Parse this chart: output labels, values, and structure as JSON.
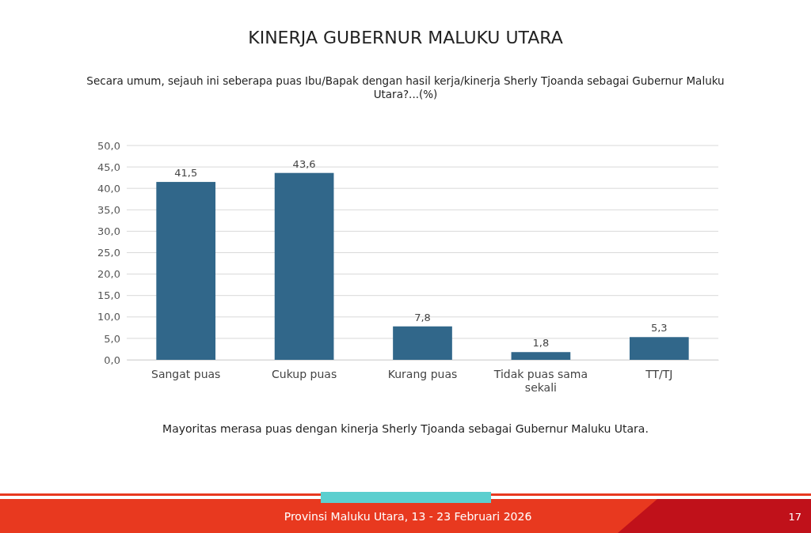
{
  "chart_data": {
    "type": "bar",
    "title": "KINERJA GUBERNUR MALUKU UTARA",
    "subtitle": "Secara umum, sejauh ini seberapa puas Ibu/Bapak dengan hasil kerja/kinerja Sherly Tjoanda sebagai Gubernur Maluku Utara?...(%)",
    "categories": [
      "Sangat puas",
      "Cukup puas",
      "Kurang puas",
      "Tidak puas sama sekali",
      "TT/TJ"
    ],
    "values": [
      41.5,
      43.6,
      7.8,
      1.8,
      5.3
    ],
    "color": "#31678a",
    "ylim": [
      0,
      50
    ],
    "yticks": [
      {
        "value": 0,
        "label": "0,0"
      },
      {
        "value": 5,
        "label": "5,0"
      },
      {
        "value": 10,
        "label": "10,0"
      },
      {
        "value": 15,
        "label": "15,0"
      },
      {
        "value": 20,
        "label": "20,0"
      },
      {
        "value": 25,
        "label": "25,0"
      },
      {
        "value": 30,
        "label": "30,0"
      },
      {
        "value": 35,
        "label": "35,0"
      },
      {
        "value": 40,
        "label": "40,0"
      },
      {
        "value": 45,
        "label": "45,0"
      },
      {
        "value": 50,
        "label": "50,0"
      }
    ],
    "value_labels": [
      "41,5",
      "43,6",
      "7,8",
      "1,8",
      "5,3"
    ],
    "grid": "y",
    "annotations": [
      "Mayoritas merasa puas dengan kinerja Sherly Tjoanda sebagai Gubernur Maluku Utara.",
      "Provinsi Maluku Utara, 13 - 23 Februari 2026",
      "17"
    ]
  }
}
